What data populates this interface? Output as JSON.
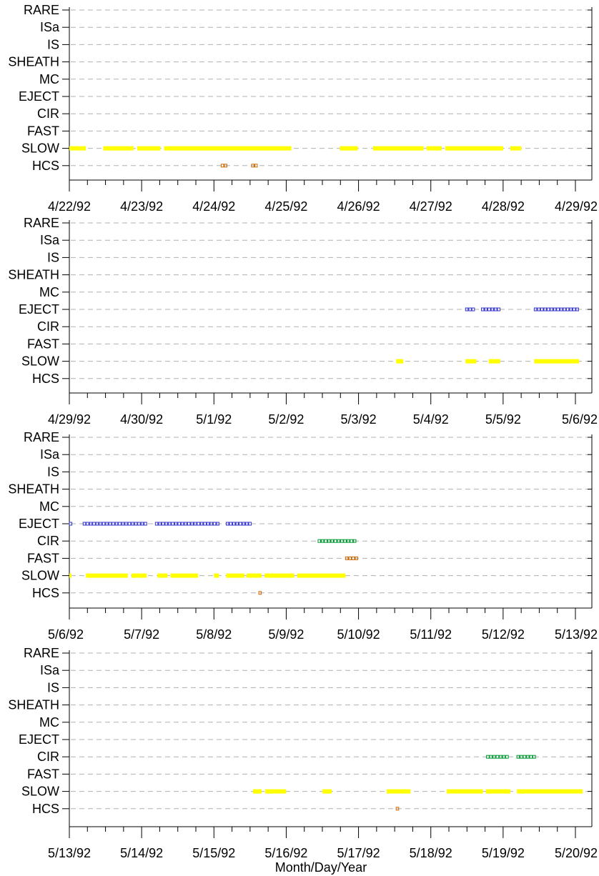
{
  "xlabel": "Month/Day/Year",
  "categories": [
    "RARE",
    "ISa",
    "IS",
    "SHEATH",
    "MC",
    "EJECT",
    "CIR",
    "FAST",
    "SLOW",
    "HCS"
  ],
  "colors": {
    "SLOW": "#ffff00",
    "EJECT": "#3333cc",
    "CIR": "#009933",
    "FAST": "#cc6600",
    "HCS": "#cc6600",
    "grid": "#b0b0b0"
  },
  "chart_data": [
    {
      "type": "timeline",
      "x_range": [
        "4/22/92",
        "4/29/92"
      ],
      "ticks": [
        "4/22/92",
        "4/23/92",
        "4/24/92",
        "4/25/92",
        "4/26/92",
        "4/27/92",
        "4/28/92",
        "4/29/92"
      ],
      "categories": [
        "RARE",
        "ISa",
        "IS",
        "SHEATH",
        "MC",
        "EJECT",
        "CIR",
        "FAST",
        "SLOW",
        "HCS"
      ],
      "intervals": {
        "SLOW": [
          [
            0.0,
            0.23
          ],
          [
            0.47,
            0.89
          ],
          [
            0.94,
            1.26
          ],
          [
            1.31,
            3.07
          ],
          [
            3.74,
            3.99
          ],
          [
            4.2,
            4.9
          ],
          [
            4.94,
            5.15
          ],
          [
            5.2,
            6.0
          ],
          [
            6.1,
            6.25
          ]
        ],
        "HCS": [
          [
            2.1,
            2.2
          ],
          [
            2.52,
            2.6
          ]
        ]
      }
    },
    {
      "type": "timeline",
      "x_range": [
        "4/29/92",
        "5/6/92"
      ],
      "ticks": [
        "4/29/92",
        "4/30/92",
        "5/1/92",
        "5/2/92",
        "5/3/92",
        "5/4/92",
        "5/5/92",
        "5/6/92"
      ],
      "categories": [
        "RARE",
        "ISa",
        "IS",
        "SHEATH",
        "MC",
        "EJECT",
        "CIR",
        "FAST",
        "SLOW",
        "HCS"
      ],
      "intervals": {
        "EJECT": [
          [
            5.48,
            5.62
          ],
          [
            5.7,
            5.96
          ],
          [
            6.43,
            7.05
          ]
        ],
        "SLOW": [
          [
            4.52,
            4.62
          ],
          [
            5.48,
            5.63
          ],
          [
            5.8,
            5.96
          ],
          [
            6.43,
            7.05
          ]
        ]
      }
    },
    {
      "type": "timeline",
      "x_range": [
        "5/6/92",
        "5/13/92"
      ],
      "ticks": [
        "5/6/92",
        "5/7/92",
        "5/8/92",
        "5/9/92",
        "5/10/92",
        "5/11/92",
        "5/12/92",
        "5/13/92"
      ],
      "categories": [
        "RARE",
        "ISa",
        "IS",
        "SHEATH",
        "MC",
        "EJECT",
        "CIR",
        "FAST",
        "SLOW",
        "HCS"
      ],
      "intervals": {
        "EJECT": [
          [
            0.0,
            0.03
          ],
          [
            0.19,
            1.07
          ],
          [
            1.19,
            2.07
          ],
          [
            2.17,
            2.54
          ]
        ],
        "CIR": [
          [
            3.44,
            3.98
          ]
        ],
        "FAST": [
          [
            3.82,
            3.98
          ]
        ],
        "SLOW": [
          [
            0.0,
            0.03
          ],
          [
            0.23,
            0.81
          ],
          [
            0.86,
            1.07
          ],
          [
            1.22,
            1.36
          ],
          [
            1.4,
            1.78
          ],
          [
            2.0,
            2.07
          ],
          [
            2.17,
            2.42
          ],
          [
            2.45,
            2.66
          ],
          [
            2.7,
            3.11
          ],
          [
            3.15,
            3.82
          ]
        ],
        "HCS": [
          [
            2.62,
            2.66
          ]
        ]
      }
    },
    {
      "type": "timeline",
      "x_range": [
        "5/13/92",
        "5/20/92"
      ],
      "ticks": [
        "5/13/92",
        "5/14/92",
        "5/15/92",
        "5/16/92",
        "5/17/92",
        "5/18/92",
        "5/19/92",
        "5/20/92"
      ],
      "categories": [
        "RARE",
        "ISa",
        "IS",
        "SHEATH",
        "MC",
        "EJECT",
        "CIR",
        "FAST",
        "SLOW",
        "HCS"
      ],
      "intervals": {
        "CIR": [
          [
            5.77,
            6.1
          ],
          [
            6.19,
            6.47
          ]
        ],
        "SLOW": [
          [
            2.54,
            2.66
          ],
          [
            2.71,
            3.0
          ],
          [
            3.5,
            3.63
          ],
          [
            4.39,
            4.72
          ],
          [
            5.22,
            5.72
          ],
          [
            5.76,
            6.1
          ],
          [
            6.19,
            7.1
          ]
        ],
        "HCS": [
          [
            4.52,
            4.56
          ]
        ]
      }
    }
  ]
}
